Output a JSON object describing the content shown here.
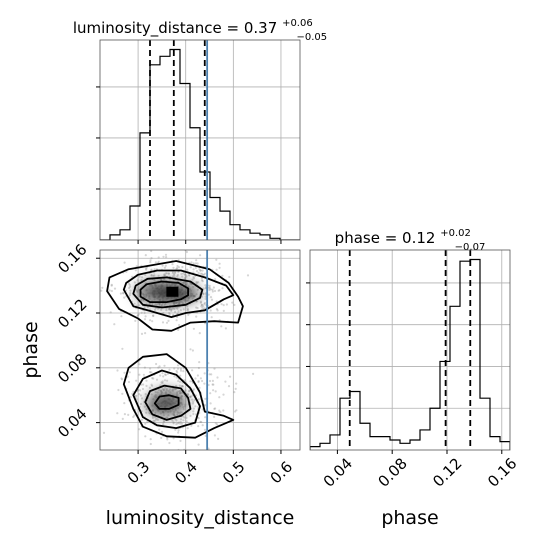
{
  "chart_data": {
    "type": "corner",
    "grid": true,
    "truth_color": "#4c81b0",
    "parameters": [
      {
        "name": "luminosity_distance",
        "label": "luminosity_distance",
        "title_main": "luminosity_distance = 0.37",
        "title_sup": "+0.06",
        "title_sub": "−0.05",
        "range": [
          0.22,
          0.64
        ],
        "ticks": [
          0.3,
          0.4,
          0.5,
          0.6
        ],
        "tick_labels": [
          "0.3",
          "0.4",
          "0.5",
          "0.6"
        ],
        "quantiles": [
          0.325,
          0.375,
          0.44
        ],
        "truth": 0.445,
        "hist_edges": [
          0.22,
          0.241,
          0.262,
          0.283,
          0.304,
          0.325,
          0.346,
          0.367,
          0.388,
          0.409,
          0.43,
          0.451,
          0.472,
          0.493,
          0.514,
          0.535,
          0.556,
          0.577,
          0.598,
          0.619,
          0.64
        ],
        "hist_counts": [
          0,
          3,
          6,
          20,
          63,
          103,
          108,
          112,
          92,
          66,
          40,
          25,
          17,
          9,
          6,
          4,
          3,
          1,
          0,
          0
        ]
      },
      {
        "name": "phase",
        "label": "phase",
        "title_main": "phase = 0.12",
        "title_sup": "+0.02",
        "title_sub": "−0.07",
        "range": [
          0.02,
          0.166
        ],
        "ticks": [
          0.04,
          0.08,
          0.12,
          0.16
        ],
        "tick_labels": [
          "0.04",
          "0.08",
          "0.12",
          "0.16"
        ],
        "quantiles": [
          0.049,
          0.119,
          0.137
        ],
        "hist_edges": [
          0.02,
          0.0273,
          0.0346,
          0.0419,
          0.0492,
          0.0565,
          0.0638,
          0.0711,
          0.0784,
          0.0857,
          0.093,
          0.1003,
          0.1076,
          0.1149,
          0.1222,
          0.1295,
          0.1368,
          0.1441,
          0.1514,
          0.1587,
          0.166
        ],
        "hist_counts": [
          2,
          4,
          9,
          31,
          35,
          16,
          8,
          8,
          6,
          4,
          6,
          12,
          25,
          53,
          86,
          113,
          114,
          31,
          8,
          5
        ]
      }
    ],
    "joint": {
      "x": "luminosity_distance",
      "y": "phase",
      "contours": [
        [
          [
            0.305,
            0.132
          ],
          [
            0.325,
            0.128
          ],
          [
            0.36,
            0.128
          ],
          [
            0.39,
            0.13
          ],
          [
            0.405,
            0.133
          ],
          [
            0.405,
            0.138
          ],
          [
            0.385,
            0.142
          ],
          [
            0.35,
            0.143
          ],
          [
            0.318,
            0.141
          ],
          [
            0.305,
            0.137
          ]
        ],
        [
          [
            0.29,
            0.134
          ],
          [
            0.31,
            0.126
          ],
          [
            0.35,
            0.124
          ],
          [
            0.4,
            0.126
          ],
          [
            0.43,
            0.131
          ],
          [
            0.435,
            0.137
          ],
          [
            0.41,
            0.143
          ],
          [
            0.36,
            0.146
          ],
          [
            0.32,
            0.145
          ],
          [
            0.295,
            0.14
          ]
        ],
        [
          [
            0.27,
            0.137
          ],
          [
            0.29,
            0.125
          ],
          [
            0.33,
            0.121
          ],
          [
            0.37,
            0.117
          ],
          [
            0.4,
            0.12
          ],
          [
            0.44,
            0.122
          ],
          [
            0.48,
            0.13
          ],
          [
            0.5,
            0.133
          ],
          [
            0.485,
            0.14
          ],
          [
            0.44,
            0.146
          ],
          [
            0.39,
            0.151
          ],
          [
            0.34,
            0.151
          ],
          [
            0.3,
            0.148
          ],
          [
            0.275,
            0.142
          ]
        ],
        [
          [
            0.235,
            0.136
          ],
          [
            0.26,
            0.123
          ],
          [
            0.3,
            0.116
          ],
          [
            0.33,
            0.108
          ],
          [
            0.37,
            0.107
          ],
          [
            0.41,
            0.113
          ],
          [
            0.46,
            0.114
          ],
          [
            0.51,
            0.113
          ],
          [
            0.52,
            0.125
          ],
          [
            0.51,
            0.132
          ],
          [
            0.49,
            0.142
          ],
          [
            0.45,
            0.152
          ],
          [
            0.38,
            0.158
          ],
          [
            0.33,
            0.155
          ],
          [
            0.28,
            0.152
          ],
          [
            0.24,
            0.146
          ]
        ],
        [
          [
            0.335,
            0.054
          ],
          [
            0.345,
            0.05
          ],
          [
            0.365,
            0.05
          ],
          [
            0.385,
            0.053
          ],
          [
            0.385,
            0.058
          ],
          [
            0.365,
            0.06
          ],
          [
            0.345,
            0.059
          ]
        ],
        [
          [
            0.315,
            0.055
          ],
          [
            0.33,
            0.046
          ],
          [
            0.36,
            0.042
          ],
          [
            0.39,
            0.045
          ],
          [
            0.41,
            0.05
          ],
          [
            0.405,
            0.058
          ],
          [
            0.39,
            0.065
          ],
          [
            0.355,
            0.067
          ],
          [
            0.325,
            0.063
          ]
        ],
        [
          [
            0.29,
            0.06
          ],
          [
            0.31,
            0.044
          ],
          [
            0.34,
            0.038
          ],
          [
            0.38,
            0.036
          ],
          [
            0.42,
            0.04
          ],
          [
            0.43,
            0.052
          ],
          [
            0.41,
            0.065
          ],
          [
            0.38,
            0.075
          ],
          [
            0.35,
            0.078
          ],
          [
            0.31,
            0.072
          ]
        ],
        [
          [
            0.27,
            0.068
          ],
          [
            0.29,
            0.05
          ],
          [
            0.31,
            0.037
          ],
          [
            0.36,
            0.03
          ],
          [
            0.42,
            0.029
          ],
          [
            0.46,
            0.036
          ],
          [
            0.5,
            0.042
          ],
          [
            0.48,
            0.045
          ],
          [
            0.44,
            0.048
          ],
          [
            0.43,
            0.062
          ],
          [
            0.4,
            0.08
          ],
          [
            0.36,
            0.09
          ],
          [
            0.31,
            0.088
          ],
          [
            0.28,
            0.08
          ]
        ]
      ],
      "density_blobs": [
        {
          "x": 0.365,
          "y": 0.135,
          "intensity": 0.85
        },
        {
          "x": 0.335,
          "y": 0.136,
          "intensity": 0.55
        },
        {
          "x": 0.395,
          "y": 0.134,
          "intensity": 0.55
        },
        {
          "x": 0.365,
          "y": 0.055,
          "intensity": 0.55
        },
        {
          "x": 0.345,
          "y": 0.052,
          "intensity": 0.45
        }
      ],
      "peak": {
        "x": 0.372,
        "y": 0.1355
      }
    }
  }
}
